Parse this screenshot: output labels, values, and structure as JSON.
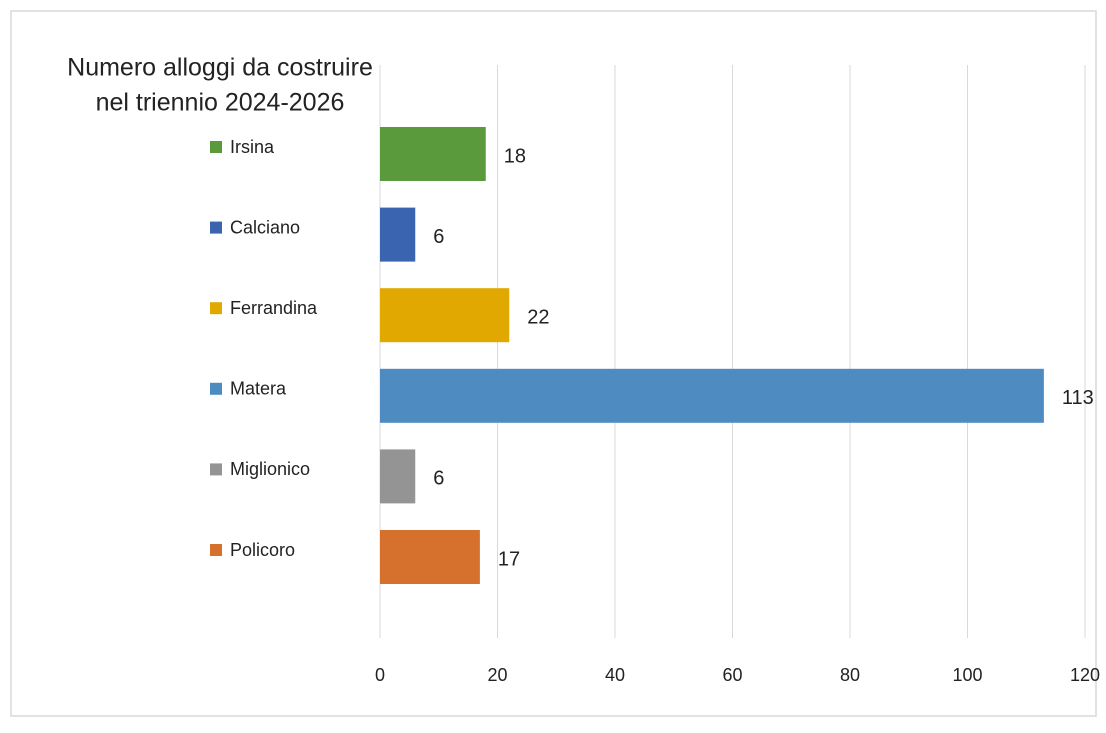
{
  "chart_data": {
    "type": "barh",
    "title": "Numero alloggi da costruire",
    "subtitle": "nel triennio 2024-2026",
    "categories": [
      "Irsina",
      "Calciano",
      "Ferrandina",
      "Matera",
      "Miglionico",
      "Policoro"
    ],
    "values": [
      18,
      6,
      22,
      113,
      6,
      17
    ],
    "colors": [
      "#5b9a3c",
      "#3a64b0",
      "#e0a800",
      "#4e8bc0",
      "#949494",
      "#d5712d"
    ],
    "xlim": [
      0,
      120
    ],
    "xticks": [
      0,
      20,
      40,
      60,
      80,
      100,
      120
    ],
    "grid": true,
    "legend": "left"
  }
}
